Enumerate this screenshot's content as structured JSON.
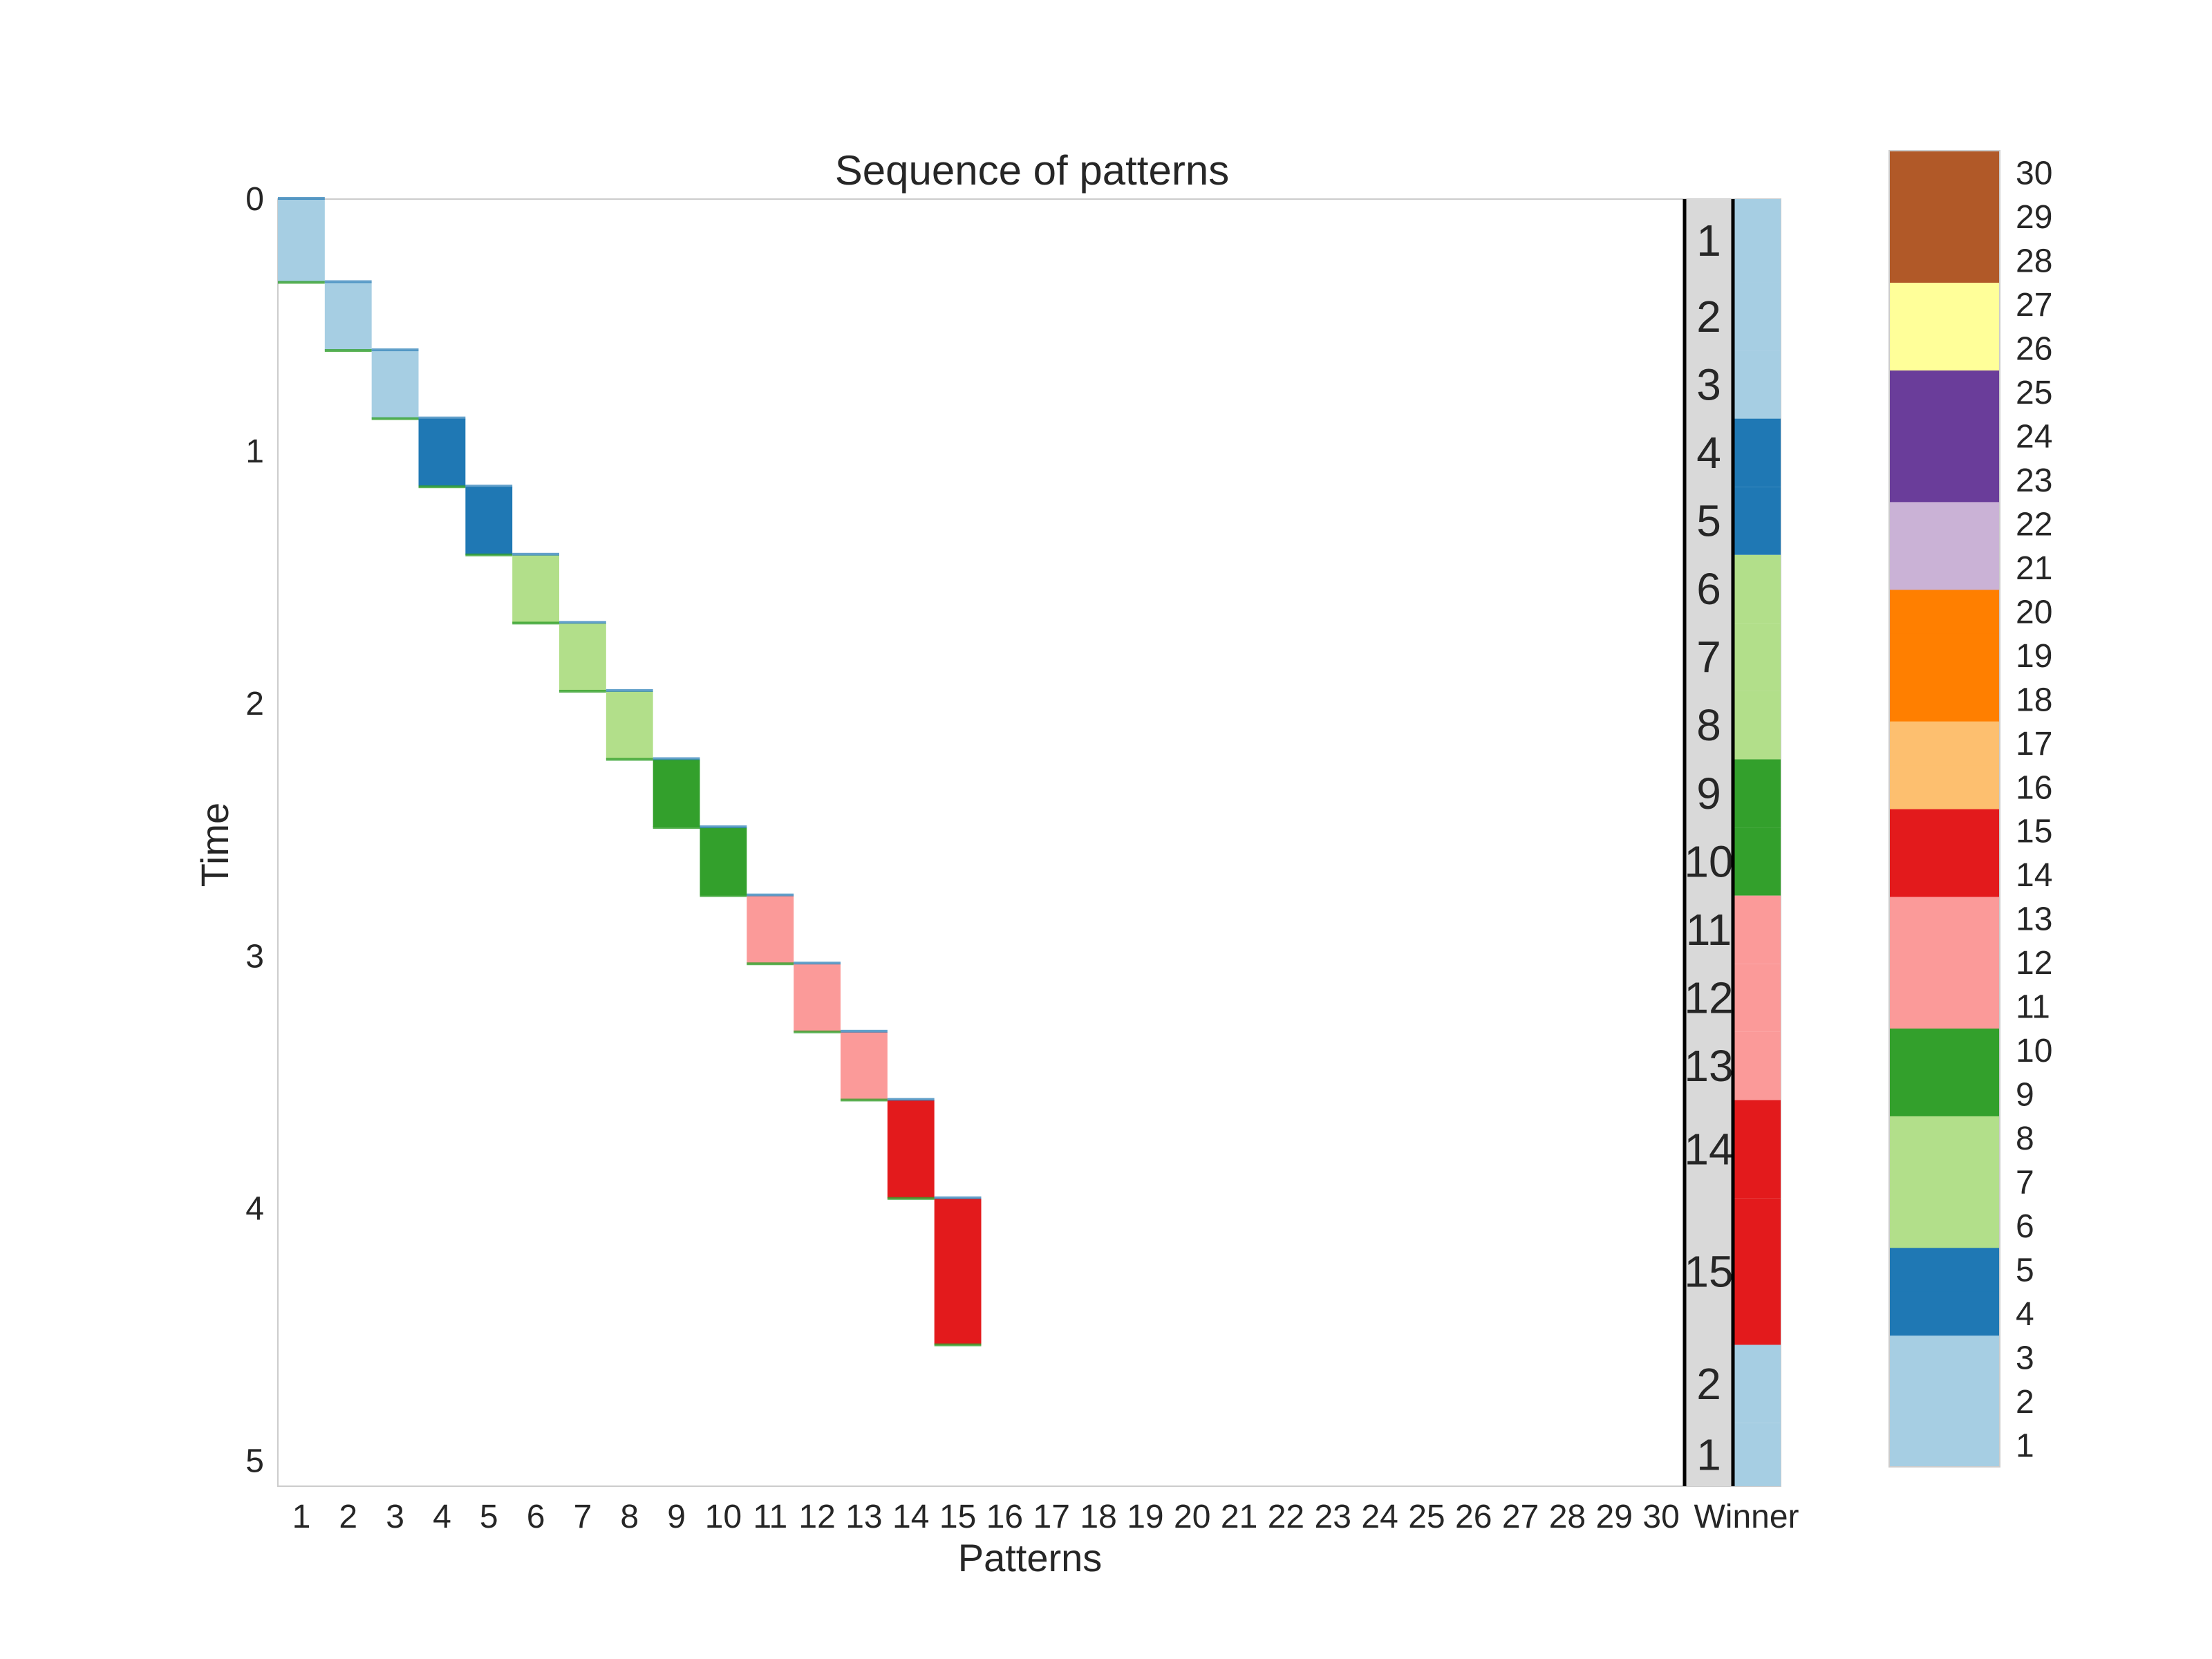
{
  "chart_data": {
    "type": "heatmap",
    "title": "Sequence of patterns",
    "xlabel": "Patterns",
    "ylabel": "Time",
    "x_tick_labels": [
      "1",
      "2",
      "3",
      "4",
      "5",
      "6",
      "7",
      "8",
      "9",
      "10",
      "11",
      "12",
      "13",
      "14",
      "15",
      "16",
      "17",
      "18",
      "19",
      "20",
      "21",
      "22",
      "23",
      "24",
      "25",
      "26",
      "27",
      "28",
      "29",
      "30"
    ],
    "winner_tick_label": "Winner",
    "y_ticks": [
      0,
      1,
      2,
      3,
      4,
      5
    ],
    "ylim": [
      5.1,
      0
    ],
    "pattern_colors": [
      "#a6cee3",
      "#a6cee3",
      "#a6cee3",
      "#1f78b4",
      "#1f78b4",
      "#b2df8a",
      "#b2df8a",
      "#b2df8a",
      "#33a02c",
      "#33a02c",
      "#fb9a99",
      "#fb9a99",
      "#fb9a99",
      "#e31a1c",
      "#e31a1c",
      "#fdbf6f",
      "#fdbf6f",
      "#ff7f00",
      "#ff7f00",
      "#ff7f00",
      "#cab2d6",
      "#cab2d6",
      "#6a3d9a",
      "#6a3d9a",
      "#6a3d9a",
      "#ffff99",
      "#ffff99",
      "#b15928",
      "#b15928",
      "#b15928"
    ],
    "activations": [
      {
        "pattern": 1,
        "start": 0.0,
        "end": 0.33
      },
      {
        "pattern": 2,
        "start": 0.33,
        "end": 0.6
      },
      {
        "pattern": 3,
        "start": 0.6,
        "end": 0.87
      },
      {
        "pattern": 4,
        "start": 0.87,
        "end": 1.14
      },
      {
        "pattern": 5,
        "start": 1.14,
        "end": 1.41
      },
      {
        "pattern": 6,
        "start": 1.41,
        "end": 1.68
      },
      {
        "pattern": 7,
        "start": 1.68,
        "end": 1.95
      },
      {
        "pattern": 8,
        "start": 1.95,
        "end": 2.22
      },
      {
        "pattern": 9,
        "start": 2.22,
        "end": 2.49
      },
      {
        "pattern": 10,
        "start": 2.49,
        "end": 2.76
      },
      {
        "pattern": 11,
        "start": 2.76,
        "end": 3.03
      },
      {
        "pattern": 12,
        "start": 3.03,
        "end": 3.3
      },
      {
        "pattern": 13,
        "start": 3.3,
        "end": 3.57
      },
      {
        "pattern": 14,
        "start": 3.57,
        "end": 3.96
      },
      {
        "pattern": 15,
        "start": 3.96,
        "end": 4.54
      }
    ],
    "winners": [
      {
        "label": "1",
        "pattern": 1,
        "start": 0.0,
        "end": 0.33
      },
      {
        "label": "2",
        "pattern": 2,
        "start": 0.33,
        "end": 0.6
      },
      {
        "label": "3",
        "pattern": 3,
        "start": 0.6,
        "end": 0.87
      },
      {
        "label": "4",
        "pattern": 4,
        "start": 0.87,
        "end": 1.14
      },
      {
        "label": "5",
        "pattern": 5,
        "start": 1.14,
        "end": 1.41
      },
      {
        "label": "6",
        "pattern": 6,
        "start": 1.41,
        "end": 1.68
      },
      {
        "label": "7",
        "pattern": 7,
        "start": 1.68,
        "end": 1.95
      },
      {
        "label": "8",
        "pattern": 8,
        "start": 1.95,
        "end": 2.22
      },
      {
        "label": "9",
        "pattern": 9,
        "start": 2.22,
        "end": 2.49
      },
      {
        "label": "10",
        "pattern": 10,
        "start": 2.49,
        "end": 2.76
      },
      {
        "label": "11",
        "pattern": 11,
        "start": 2.76,
        "end": 3.03
      },
      {
        "label": "12",
        "pattern": 12,
        "start": 3.03,
        "end": 3.3
      },
      {
        "label": "13",
        "pattern": 13,
        "start": 3.3,
        "end": 3.57
      },
      {
        "label": "14",
        "pattern": 14,
        "start": 3.57,
        "end": 3.96
      },
      {
        "label": "15",
        "pattern": 15,
        "start": 3.96,
        "end": 4.54
      },
      {
        "label": "2",
        "pattern": 2,
        "start": 4.54,
        "end": 4.85
      },
      {
        "label": "1",
        "pattern": 1,
        "start": 4.85,
        "end": 5.1
      }
    ],
    "colorbar": {
      "labels": [
        "1",
        "2",
        "3",
        "4",
        "5",
        "6",
        "7",
        "8",
        "9",
        "10",
        "11",
        "12",
        "13",
        "14",
        "15",
        "16",
        "17",
        "18",
        "19",
        "20",
        "21",
        "22",
        "23",
        "24",
        "25",
        "26",
        "27",
        "28",
        "29",
        "30"
      ]
    }
  }
}
